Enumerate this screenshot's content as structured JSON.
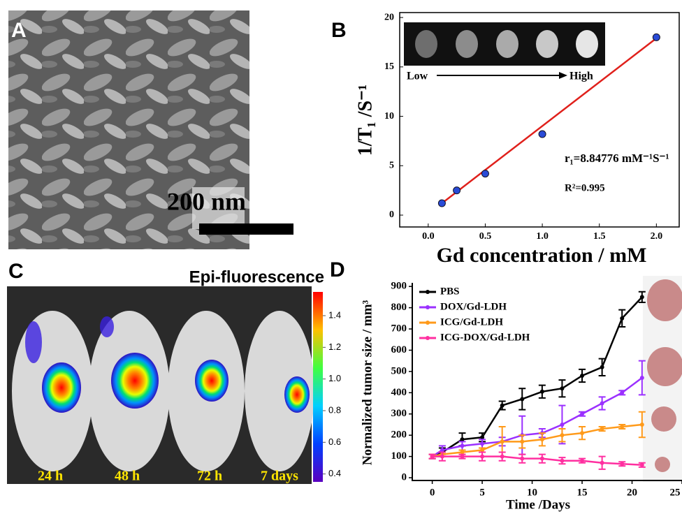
{
  "panel_labels": [
    "A",
    "B",
    "C",
    "D"
  ],
  "sem_image": {
    "scale_bar": "200 nm"
  },
  "fluorescence_image": {
    "title": "Epi-fluorescence",
    "time_labels": [
      "24 h",
      "48 h",
      "72 h",
      "7 days"
    ],
    "colorbar_ticks": [
      1.4,
      1.2,
      {
        "value": 1.0,
        "label": "1.0"
      },
      0.8,
      0.6,
      0.4
    ],
    "colorbar_range": [
      0.35,
      1.55
    ]
  },
  "chart_data": [
    {
      "type": "scatter",
      "x": [
        0.12,
        0.25,
        0.5,
        1.0,
        2.0
      ],
      "values": [
        1.2,
        2.5,
        4.2,
        8.2,
        18.0
      ],
      "color": "#2a4bd7",
      "fit_line": {
        "x": [
          0.12,
          2.0
        ],
        "values": [
          1.2,
          17.9
        ],
        "color": "#e0201b"
      },
      "x_label": "Gd concentration / mM",
      "y_label": "1/T₁ /S⁻¹",
      "inset_labels": [
        "Low",
        "High"
      ],
      "annotations": [
        "r₁=8.84776 mM⁻¹S⁻¹",
        "R²=0.995"
      ],
      "xlim": [
        -0.25,
        2.2
      ],
      "xticks": [
        {
          "value": 0.0,
          "label": "0.0"
        },
        0.5,
        {
          "value": 1.0,
          "label": "1.0"
        },
        1.5,
        {
          "value": 2.0,
          "label": "2.0"
        }
      ],
      "ylim": [
        -1.2,
        20.5
      ],
      "yticks": [
        0,
        5,
        10,
        15,
        20
      ]
    },
    {
      "type": "line",
      "x": [
        0,
        1,
        3,
        5,
        7,
        9,
        11,
        13,
        15,
        17,
        19,
        21
      ],
      "x_label": "Time /Days",
      "y_label": "Normalized tumor size / mm³",
      "series": [
        {
          "name": "PBS",
          "color": "#000000",
          "values": [
            100,
            120,
            180,
            190,
            340,
            370,
            405,
            420,
            480,
            520,
            750,
            850
          ],
          "errors": [
            10,
            20,
            30,
            20,
            20,
            50,
            30,
            40,
            30,
            40,
            40,
            25
          ]
        },
        {
          "name": "DOX/Gd-LDH",
          "color": "#9b30ff",
          "values": [
            100,
            130,
            150,
            160,
            170,
            200,
            210,
            250,
            300,
            350,
            400,
            470
          ],
          "errors": [
            10,
            20,
            20,
            20,
            20,
            90,
            20,
            90,
            10,
            30,
            10,
            80
          ]
        },
        {
          "name": "ICG/Gd-LDH",
          "color": "#ff9a1a",
          "values": [
            100,
            110,
            120,
            130,
            170,
            170,
            180,
            200,
            210,
            230,
            240,
            250
          ],
          "errors": [
            10,
            10,
            10,
            10,
            70,
            30,
            30,
            30,
            30,
            10,
            10,
            60
          ]
        },
        {
          "name": "ICG-DOX/Gd-LDH",
          "color": "#ff2fa0",
          "values": [
            100,
            100,
            100,
            100,
            100,
            90,
            90,
            80,
            80,
            70,
            65,
            60
          ],
          "errors": [
            10,
            20,
            10,
            20,
            20,
            20,
            20,
            15,
            10,
            30,
            10,
            10
          ]
        }
      ],
      "xlim": [
        -2,
        25
      ],
      "xticks": [
        0,
        5,
        10,
        15,
        20,
        25
      ],
      "ylim": [
        -13,
        917
      ],
      "yticks": [
        0,
        100,
        200,
        300,
        400,
        500,
        600,
        700,
        800,
        900
      ]
    }
  ]
}
